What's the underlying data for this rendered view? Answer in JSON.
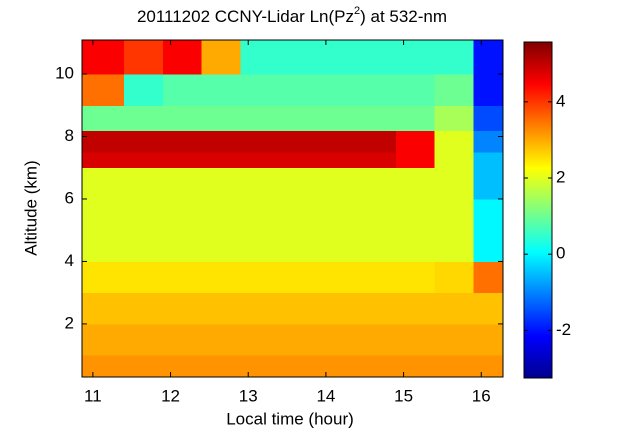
{
  "chart_data": {
    "type": "heatmap",
    "title_parts": [
      "20111202 CCNY-Lidar Ln(Pz",
      "2",
      ") at 532-nm"
    ],
    "xlabel": "Local time (hour)",
    "ylabel": "Altitude (km)",
    "x_edges": [
      10.86,
      11.4,
      11.9,
      12.4,
      12.9,
      13.4,
      13.9,
      14.4,
      14.9,
      15.4,
      15.9,
      16.28
    ],
    "y_edges": [
      0.3,
      1,
      2,
      3,
      4,
      5,
      6,
      7,
      7.5,
      8.2,
      9,
      10,
      11.09
    ],
    "z": [
      [
        3.2,
        3.2,
        3.2,
        3.2,
        3.2,
        3.2,
        3.2,
        3.2,
        3.2,
        3.2,
        3.2
      ],
      [
        3.0,
        3.0,
        3.0,
        3.0,
        3.0,
        3.0,
        3.0,
        3.0,
        3.0,
        3.0,
        3.0
      ],
      [
        2.8,
        2.8,
        2.8,
        2.8,
        2.8,
        2.8,
        2.8,
        2.8,
        2.8,
        2.8,
        2.8
      ],
      [
        2.5,
        2.5,
        2.5,
        2.5,
        2.5,
        2.5,
        2.5,
        2.5,
        2.5,
        2.6,
        3.5
      ],
      [
        2.0,
        2.0,
        2.0,
        2.0,
        2.0,
        2.0,
        2.0,
        2.0,
        2.0,
        2.0,
        0
      ],
      [
        2.0,
        2.0,
        2.0,
        2.0,
        2.0,
        2.0,
        2.0,
        2.0,
        2.0,
        2.0,
        0
      ],
      [
        2.0,
        2.0,
        2.0,
        2.0,
        2.0,
        2.0,
        2.0,
        2.0,
        2.0,
        2.0,
        -0.5
      ],
      [
        4.8,
        4.8,
        4.8,
        4.8,
        4.8,
        4.8,
        4.8,
        4.8,
        4.5,
        2.0,
        -0.5
      ],
      [
        5.0,
        5.0,
        5.0,
        5.0,
        5.0,
        5.0,
        5.0,
        5.0,
        4.5,
        2.0,
        -1
      ],
      [
        1.0,
        1.0,
        1.0,
        1.0,
        1.0,
        1.0,
        1.0,
        1.0,
        1.0,
        1.5,
        -1.5
      ],
      [
        3.5,
        0.5,
        0.8,
        0.8,
        0.8,
        0.8,
        0.8,
        0.8,
        0.8,
        1.0,
        -2
      ],
      [
        4.5,
        4.0,
        4.5,
        3.0,
        0.5,
        0.5,
        0.5,
        0.5,
        0.5,
        0.5,
        -2
      ]
    ],
    "xlim": [
      10.86,
      16.28
    ],
    "ylim": [
      0.3,
      11.09
    ],
    "xticks": [
      11,
      12,
      13,
      14,
      15,
      16
    ],
    "yticks": [
      2,
      4,
      6,
      8,
      10
    ],
    "clim": [
      -3.25,
      5.57
    ],
    "cticks": [
      -2,
      0,
      2,
      4
    ],
    "colormap": "jet"
  }
}
